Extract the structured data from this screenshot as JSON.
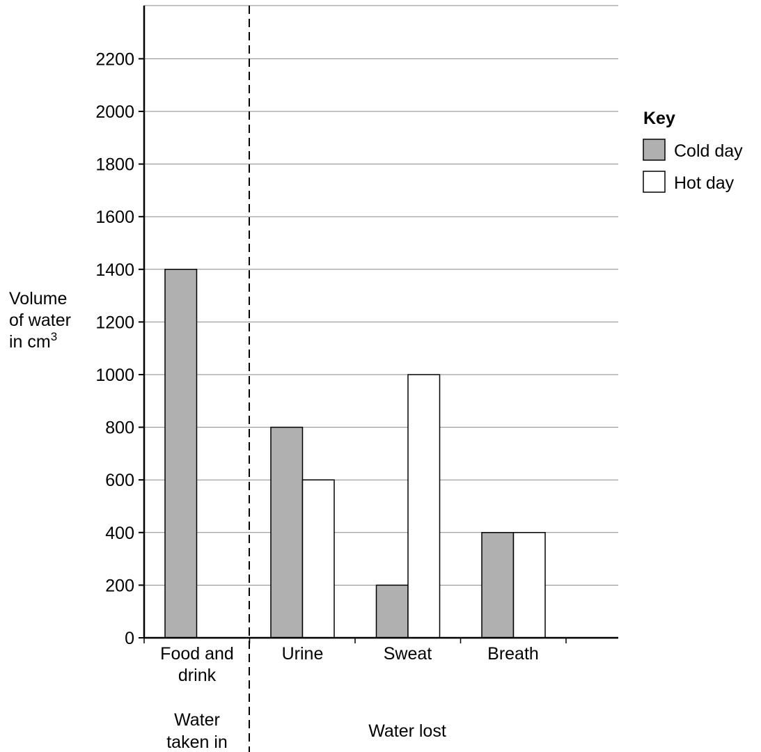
{
  "chart_data": {
    "type": "bar",
    "ylabel_lines": [
      "Volume",
      "of water",
      "in cm"
    ],
    "ylabel_superscript": "3",
    "ylim": [
      0,
      2400
    ],
    "yticks": [
      0,
      200,
      400,
      600,
      800,
      1000,
      1200,
      1400,
      1600,
      1800,
      2000,
      2200
    ],
    "grid": true,
    "categories": [
      {
        "lines": [
          "Food and",
          "drink"
        ]
      },
      {
        "lines": [
          "Urine"
        ]
      },
      {
        "lines": [
          "Sweat"
        ]
      },
      {
        "lines": [
          "Breath"
        ]
      }
    ],
    "series": [
      {
        "name": "Cold day",
        "color": "#b0b0b0",
        "values": [
          1400,
          800,
          200,
          400
        ]
      },
      {
        "name": "Hot day",
        "color": "#ffffff",
        "values": [
          null,
          600,
          1000,
          400
        ]
      }
    ],
    "groups": [
      {
        "lines": [
          "Water",
          "taken in"
        ]
      },
      {
        "lines": [
          "Water lost"
        ]
      }
    ],
    "legend": {
      "title": "Key",
      "placement": "right"
    }
  }
}
